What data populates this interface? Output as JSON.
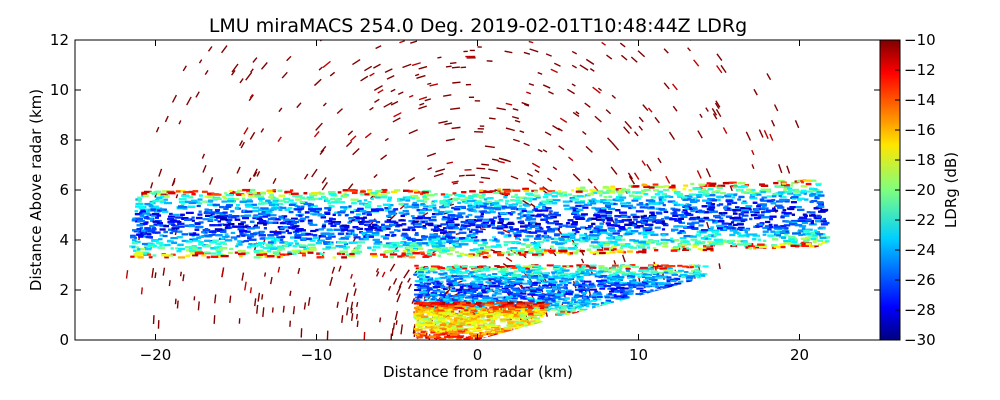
{
  "chart_data": {
    "type": "heatmap",
    "subtype": "radar-rhi-scan",
    "title": "LMU miraMACS 254.0 Deg. 2019-02-01T10:48:44Z  LDRg",
    "xlabel": "Distance from radar (km)",
    "ylabel": "Distance Above radar  (km)",
    "xlim": [
      -25,
      25
    ],
    "ylim": [
      0,
      12
    ],
    "xticks": [
      -20,
      -10,
      0,
      10,
      20
    ],
    "xtick_labels": [
      "−20",
      "−10",
      "0",
      "10",
      "20"
    ],
    "yticks": [
      0,
      2,
      4,
      6,
      8,
      10,
      12
    ],
    "ytick_labels": [
      "0",
      "2",
      "4",
      "6",
      "8",
      "10",
      "12"
    ],
    "colorbar": {
      "label": "LDRg (dB)",
      "range": [
        -30,
        -10
      ],
      "colormap": "jet",
      "ticks": [
        -10,
        -12,
        -14,
        -16,
        -18,
        -20,
        -22,
        -24,
        -26,
        -28,
        -30
      ],
      "tick_labels": [
        "−10",
        "−12",
        "−14",
        "−16",
        "−18",
        "−20",
        "−22",
        "−24",
        "−26",
        "−28",
        "−30"
      ]
    },
    "scan_range_km": [
      -22,
      22
    ],
    "scan_elevation_limit_deg": [
      10,
      170
    ],
    "features": [
      {
        "name": "main-cloud-layer",
        "x_range": [
          -22,
          22
        ],
        "height_range": [
          3.3,
          6.0
        ],
        "ldr_core": -27,
        "ldr_edges": -18
      },
      {
        "name": "lower-layer",
        "x_range": [
          -4,
          14
        ],
        "height_range": [
          1.0,
          3.0
        ],
        "ldr_core": -26,
        "ldr_edges": -20
      },
      {
        "name": "near-radar-clutter",
        "x_range": [
          -4,
          4
        ],
        "height_range": [
          0,
          1.5
        ],
        "ldr_core": -18,
        "ldr_edges": -12
      },
      {
        "name": "sparse-noise",
        "x_range": [
          -22,
          22
        ],
        "height_range": [
          0,
          12
        ],
        "ldr_core": -10,
        "ldr_edges": -10
      }
    ]
  }
}
